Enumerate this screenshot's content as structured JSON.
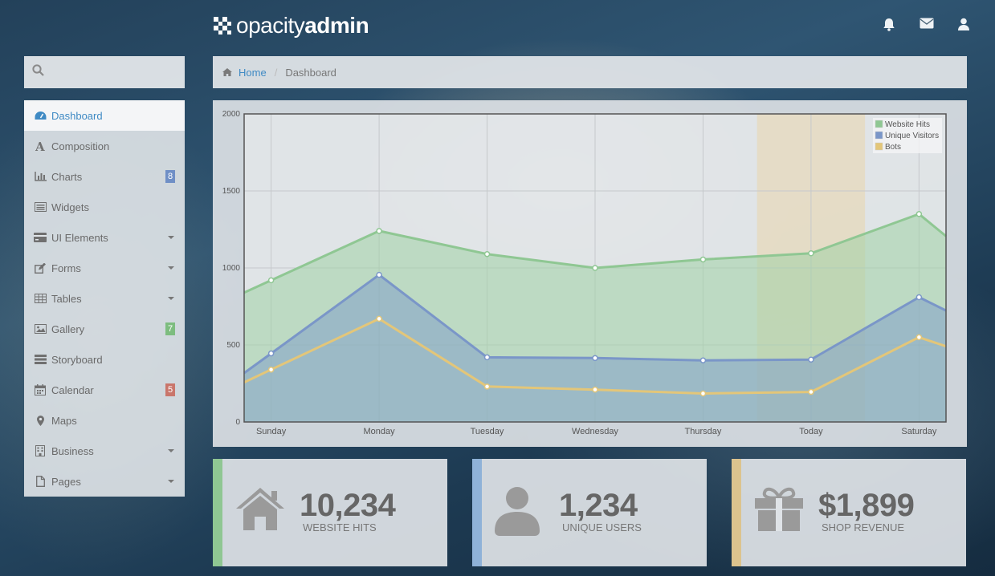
{
  "brand": {
    "name_light": "opacity",
    "name_bold": "admin"
  },
  "header_icons": [
    "bell-icon",
    "envelope-icon",
    "user-icon"
  ],
  "search": {
    "placeholder": ""
  },
  "nav": [
    {
      "label": "Dashboard",
      "icon": "dashboard-icon",
      "active": true,
      "badge": null,
      "caret": false
    },
    {
      "label": "Composition",
      "icon": "font-icon",
      "active": false,
      "badge": null,
      "caret": false
    },
    {
      "label": "Charts",
      "icon": "bar-chart-icon",
      "active": false,
      "badge": "8",
      "badge_color": "#6f8fc6",
      "caret": false
    },
    {
      "label": "Widgets",
      "icon": "list-alt-icon",
      "active": false,
      "badge": null,
      "caret": false
    },
    {
      "label": "UI Elements",
      "icon": "credit-card-icon",
      "active": false,
      "badge": null,
      "caret": true
    },
    {
      "label": "Forms",
      "icon": "edit-icon",
      "active": false,
      "badge": null,
      "caret": true
    },
    {
      "label": "Tables",
      "icon": "table-icon",
      "active": false,
      "badge": null,
      "caret": true
    },
    {
      "label": "Gallery",
      "icon": "picture-icon",
      "active": false,
      "badge": "7",
      "badge_color": "#7dbd7f",
      "caret": false
    },
    {
      "label": "Storyboard",
      "icon": "list-icon",
      "active": false,
      "badge": null,
      "caret": false
    },
    {
      "label": "Calendar",
      "icon": "calendar-icon",
      "active": false,
      "badge": "5",
      "badge_color": "#c9766b",
      "caret": false
    },
    {
      "label": "Maps",
      "icon": "map-marker-icon",
      "active": false,
      "badge": null,
      "caret": false
    },
    {
      "label": "Business",
      "icon": "building-icon",
      "active": false,
      "badge": null,
      "caret": true
    },
    {
      "label": "Pages",
      "icon": "file-icon",
      "active": false,
      "badge": null,
      "caret": true
    }
  ],
  "breadcrumb": {
    "home": "Home",
    "current": "Dashboard"
  },
  "chart_data": {
    "type": "area",
    "categories": [
      "Sunday",
      "Monday",
      "Tuesday",
      "Wednesday",
      "Thursday",
      "Today",
      "Saturday"
    ],
    "ylim": [
      0,
      2000
    ],
    "yticks": [
      0,
      500,
      1000,
      1500,
      2000
    ],
    "grid": true,
    "legend_position": "top-right",
    "highlight_category": "Today",
    "series": [
      {
        "name": "Website Hits",
        "color": "#8fc793",
        "values": [
          920,
          1240,
          1090,
          1000,
          1055,
          1095,
          1350
        ]
      },
      {
        "name": "Unique Visitors",
        "color": "#7a96c8",
        "values": [
          445,
          955,
          420,
          415,
          400,
          405,
          810
        ]
      },
      {
        "name": "Bots",
        "color": "#e3c679",
        "values": [
          340,
          670,
          230,
          210,
          185,
          195,
          550
        ]
      }
    ]
  },
  "stats": [
    {
      "value": "10,234",
      "label": "WEBSITE HITS",
      "color": "#8fc793",
      "icon": "home-icon"
    },
    {
      "value": "1,234",
      "label": "UNIQUE USERS",
      "color": "#8fb2d8",
      "icon": "user-icon"
    },
    {
      "value": "$1,899",
      "label": "SHOP REVENUE",
      "color": "#dcc38e",
      "icon": "gift-icon"
    }
  ]
}
